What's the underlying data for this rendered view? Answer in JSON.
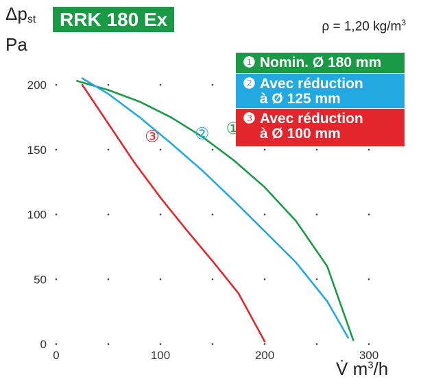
{
  "header": {
    "title": "RRK 180 Ex",
    "y_symbol": "Δp",
    "y_sub": "st",
    "y_unit": "Pa",
    "density_text": "ρ = 1,20 kg/m",
    "density_exp": "3",
    "x_label": "V̇ m",
    "x_exp": "3",
    "x_after": "/h"
  },
  "legend": [
    {
      "num": "❶",
      "line1": "Nomin. Ø 180 mm",
      "line2": ""
    },
    {
      "num": "❷",
      "line1": "Avec réduction",
      "line2": "à Ø 125 mm"
    },
    {
      "num": "❸",
      "line1": "Avec réduction",
      "line2": "à Ø 100 mm"
    }
  ],
  "colors": {
    "green": "#1b9a46",
    "blue": "#23a9e1",
    "red": "#e2262b"
  },
  "chart_data": {
    "type": "line",
    "title": "RRK 180 Ex",
    "xlabel": "V̇ m3/h",
    "ylabel": "Δpst Pa",
    "xlim": [
      0,
      300
    ],
    "ylim": [
      0,
      200
    ],
    "x_ticks": [
      0,
      100,
      200,
      300
    ],
    "y_ticks": [
      0,
      50,
      100,
      150,
      200
    ],
    "grid": "dotted",
    "series": [
      {
        "name": "Nomin. Ø 180 mm",
        "marker": "①",
        "color": "#1b9a46",
        "points": [
          [
            20,
            203
          ],
          [
            50,
            196
          ],
          [
            80,
            187
          ],
          [
            110,
            175
          ],
          [
            140,
            160
          ],
          [
            170,
            142
          ],
          [
            200,
            121
          ],
          [
            230,
            95
          ],
          [
            260,
            60
          ],
          [
            285,
            3
          ]
        ]
      },
      {
        "name": "Avec réduction à Ø 125 mm",
        "marker": "②",
        "color": "#23a9e1",
        "points": [
          [
            25,
            205
          ],
          [
            50,
            193
          ],
          [
            80,
            175
          ],
          [
            110,
            155
          ],
          [
            140,
            134
          ],
          [
            170,
            111
          ],
          [
            200,
            87
          ],
          [
            230,
            63
          ],
          [
            260,
            33
          ],
          [
            280,
            5
          ]
        ]
      },
      {
        "name": "Avec réduction à Ø 100 mm",
        "marker": "③",
        "color": "#e2262b",
        "points": [
          [
            25,
            200
          ],
          [
            50,
            170
          ],
          [
            75,
            140
          ],
          [
            100,
            113
          ],
          [
            125,
            88
          ],
          [
            150,
            64
          ],
          [
            175,
            39
          ],
          [
            200,
            2
          ]
        ]
      }
    ]
  }
}
